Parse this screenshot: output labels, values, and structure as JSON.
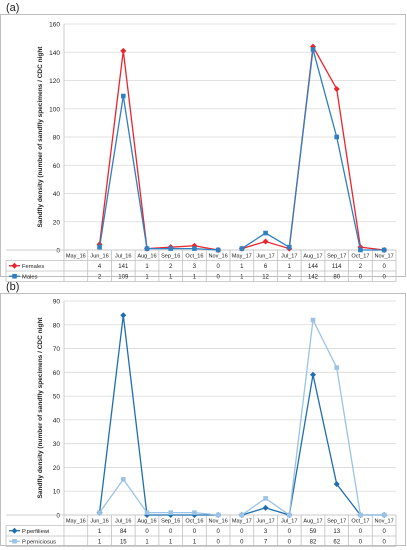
{
  "panels": [
    {
      "label": "(a)",
      "chart_data": {
        "type": "line",
        "title": "",
        "xlabel": "",
        "ylabel": "Sandfly density (number of sandfly specimens / CDC night",
        "ylim": [
          0,
          160
        ],
        "ytick_step": 20,
        "grid": true,
        "legend": "table-left",
        "categories": [
          "May_16",
          "Jun_16",
          "Jul_16",
          "Aug_16",
          "Sep_16",
          "Oct_16",
          "Nov_16",
          "May_17",
          "Jun_17",
          "Jul_17",
          "Aug_17",
          "Sep_17",
          "Oct_17",
          "Nov_17"
        ],
        "segments": [
          [
            0,
            6
          ],
          [
            7,
            13
          ]
        ],
        "series": [
          {
            "name": "Females",
            "color": "#e8262d",
            "marker": "diamond",
            "values": [
              null,
              4,
              141,
              1,
              2,
              3,
              0,
              1,
              6,
              1,
              144,
              114,
              2,
              0
            ],
            "table": [
              "",
              "4",
              "141",
              "1",
              "2",
              "3",
              "0",
              "1",
              "6",
              "1",
              "144",
              "114",
              "2",
              "0"
            ]
          },
          {
            "name": "Males",
            "color": "#2f7fc1",
            "marker": "square",
            "values": [
              null,
              2,
              109,
              1,
              1,
              1,
              0,
              1,
              12,
              2,
              142,
              80,
              0,
              0
            ],
            "table": [
              "",
              "2",
              "109",
              "1",
              "1",
              "1",
              "0",
              "1",
              "12",
              "2",
              "142",
              "80",
              "0",
              "0"
            ]
          }
        ]
      }
    },
    {
      "label": "(b)",
      "chart_data": {
        "type": "line",
        "title": "",
        "xlabel": "",
        "ylabel": "Sandfly density (number of sandfly specimens / CDC night",
        "ylim": [
          0,
          90
        ],
        "ytick_step": 10,
        "grid": true,
        "legend": "table-left",
        "categories": [
          "May_16",
          "Jun_16",
          "Jul_16",
          "Aug_16",
          "Sep_16",
          "Oct_16",
          "Nov_16",
          "May_17",
          "Jun_17",
          "Jul_17",
          "Aug_17",
          "Sep_17",
          "Oct_17",
          "Nov_17"
        ],
        "segments": [
          [
            0,
            6
          ],
          [
            7,
            13
          ]
        ],
        "series": [
          {
            "name": "P.perfiliewi",
            "color": "#1f6fb0",
            "marker": "diamond",
            "values": [
              null,
              1,
              84,
              0,
              0,
              0,
              0,
              0,
              3,
              0,
              59,
              13,
              0,
              0
            ],
            "table": [
              "",
              "1",
              "84",
              "0",
              "0",
              "0",
              "0",
              "0",
              "3",
              "0",
              "59",
              "13",
              "0",
              "0"
            ]
          },
          {
            "name": "P.perniciosus",
            "color": "#9cc3e6",
            "marker": "square",
            "values": [
              null,
              1,
              15,
              1,
              1,
              1,
              0,
              0,
              7,
              0,
              82,
              62,
              0,
              0
            ],
            "table": [
              "",
              "1",
              "15",
              "1",
              "1",
              "1",
              "0",
              "0",
              "7",
              "0",
              "82",
              "62",
              "0",
              "0"
            ]
          }
        ]
      }
    }
  ]
}
